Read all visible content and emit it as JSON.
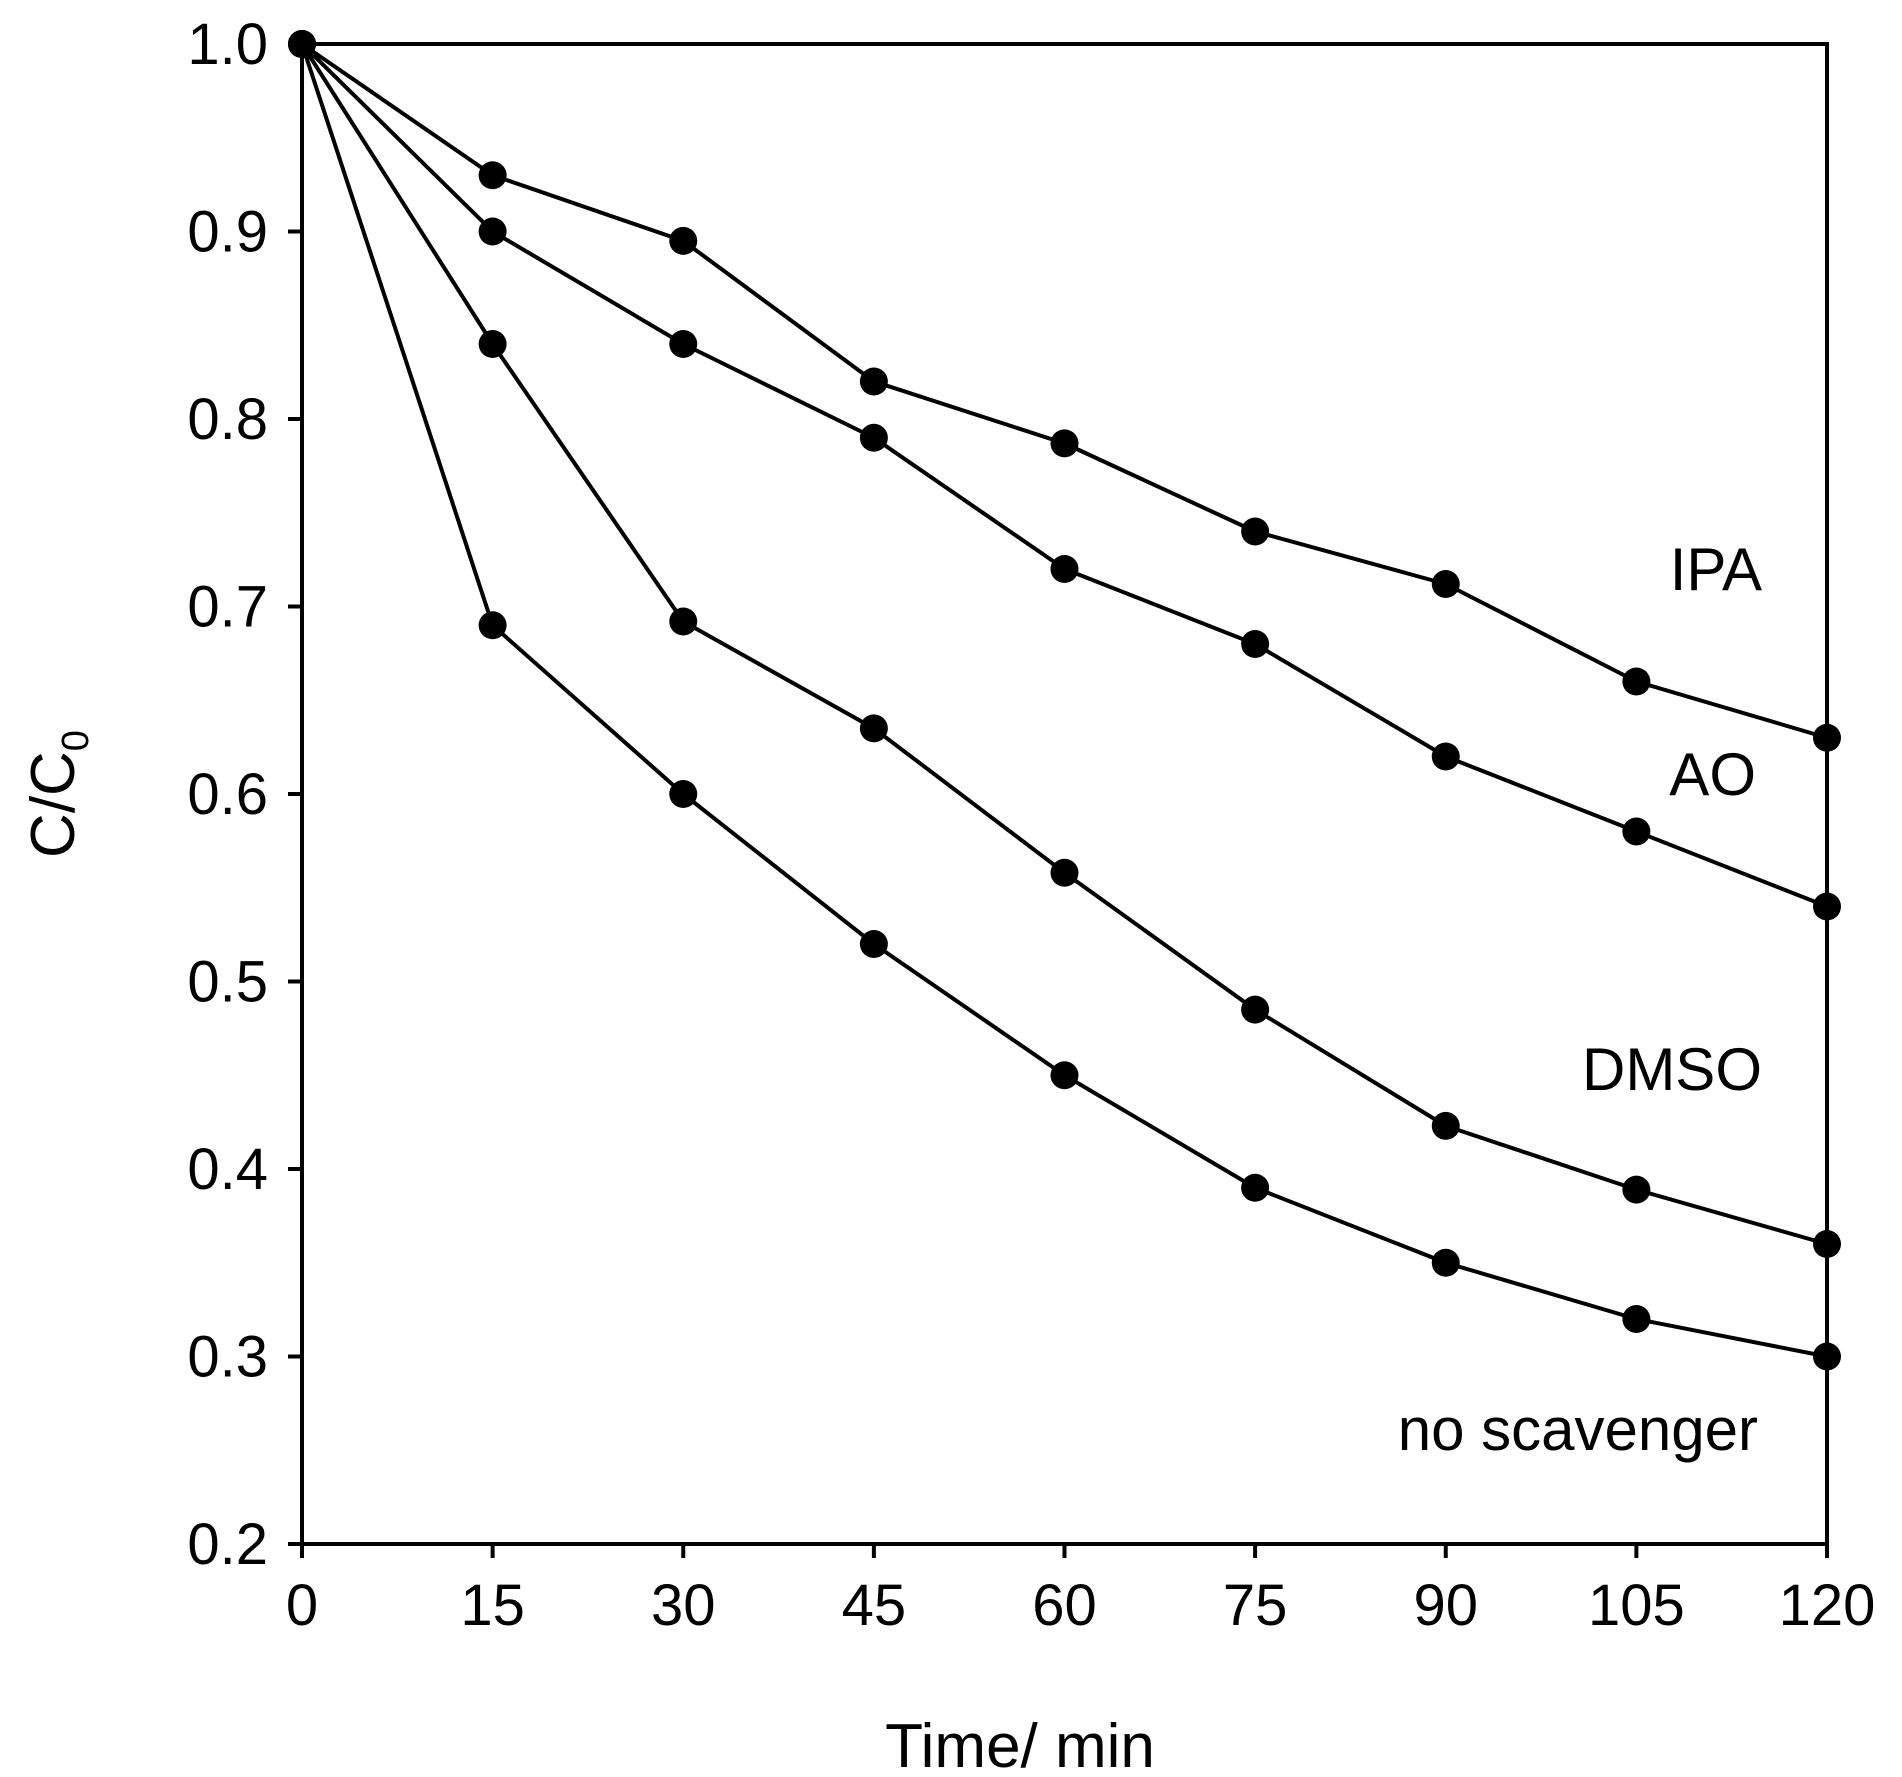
{
  "chart_data": {
    "type": "line",
    "title": "",
    "xlabel": "Time/ min",
    "ylabel_main": "C/C",
    "ylabel_sub": "0",
    "x": [
      0,
      15,
      30,
      45,
      60,
      75,
      90,
      105,
      120
    ],
    "xlim": [
      0,
      120
    ],
    "ylim": [
      0.2,
      1.0
    ],
    "x_ticks": [
      "0",
      "15",
      "30",
      "45",
      "60",
      "75",
      "90",
      "105",
      "120"
    ],
    "y_ticks": [
      "0.2",
      "0.3",
      "0.4",
      "0.5",
      "0.6",
      "0.7",
      "0.8",
      "0.9",
      "1.0"
    ],
    "grid": false,
    "series": [
      {
        "name": "IPA",
        "values": [
          1.0,
          0.93,
          0.895,
          0.82,
          0.787,
          0.74,
          0.712,
          0.66,
          0.63
        ]
      },
      {
        "name": "AO",
        "values": [
          1.0,
          0.9,
          0.84,
          0.79,
          0.72,
          0.68,
          0.62,
          0.58,
          0.54
        ]
      },
      {
        "name": "DMSO",
        "values": [
          1.0,
          0.84,
          0.692,
          0.635,
          0.558,
          0.485,
          0.423,
          0.389,
          0.36
        ]
      },
      {
        "name": "no scavenger",
        "values": [
          1.0,
          0.69,
          0.6,
          0.52,
          0.45,
          0.39,
          0.35,
          0.32,
          0.3
        ]
      }
    ],
    "colors": {
      "line": "#000000",
      "marker": "#000000",
      "axis": "#000000",
      "background": "#ffffff"
    }
  }
}
